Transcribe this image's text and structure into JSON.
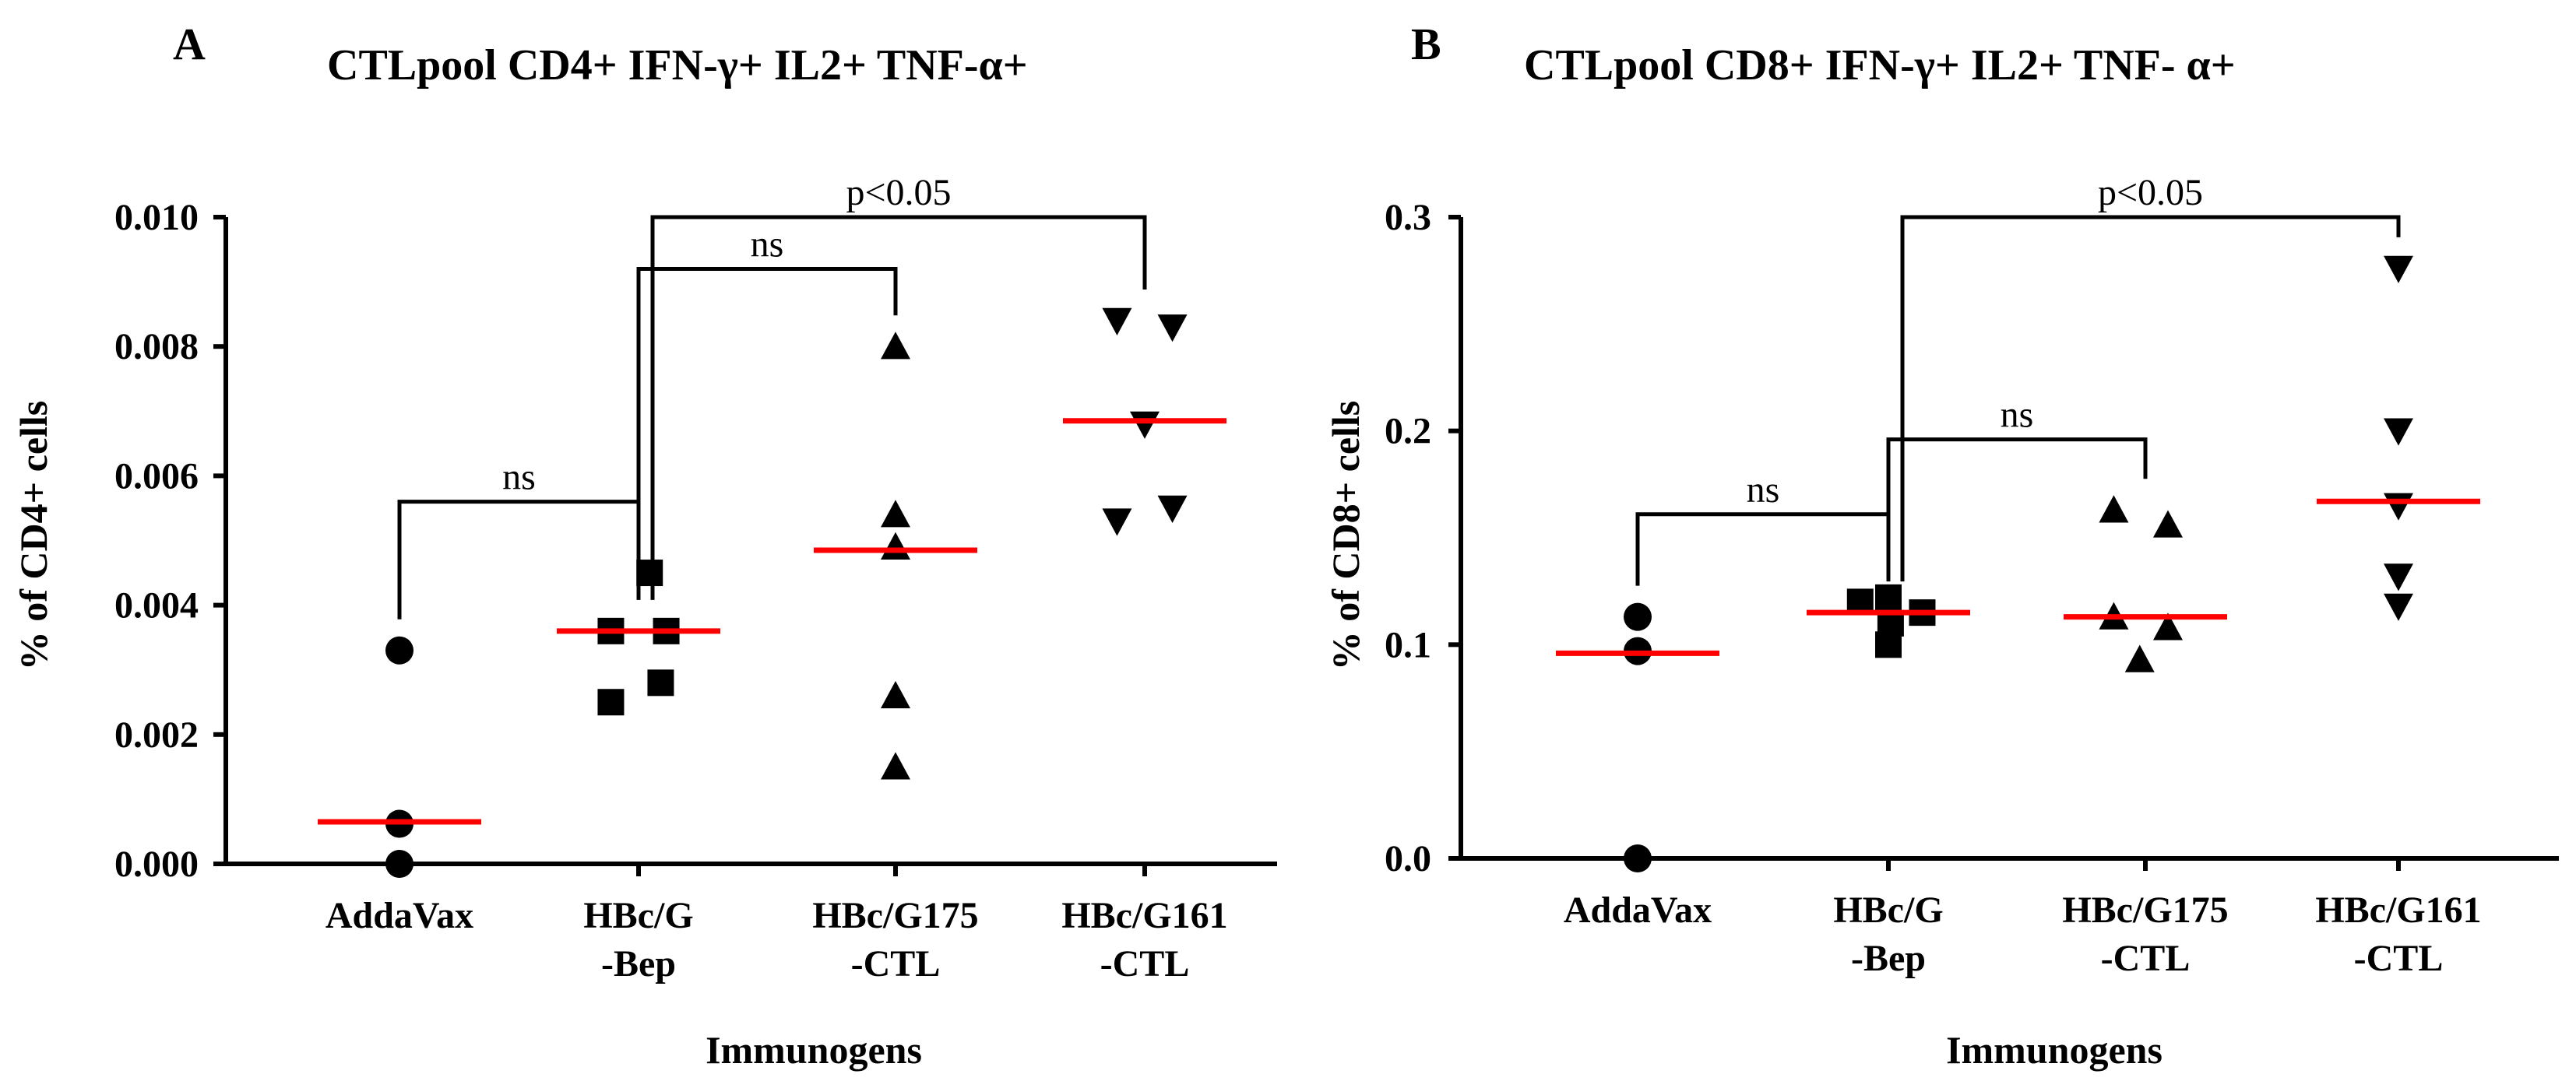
{
  "panel_a": {
    "letter": "A",
    "title": "CTLpool CD4+  IFN-γ+  IL2+ TNF-α+",
    "ylabel": "% of  CD4+ cells",
    "xlabel": "Immunogens"
  },
  "panel_b": {
    "letter": "B",
    "title": "CTLpool  CD8+  IFN-γ+  IL2+ TNF- α+",
    "ylabel": "% of  CD8+ cells",
    "xlabel": "Immunogens"
  },
  "colors": {
    "median": "#ff0000",
    "points": "#000000"
  },
  "chart_data": [
    {
      "type": "scatter",
      "panel": "A",
      "title": "CTLpool CD4+  IFN-γ+  IL2+ TNF-α+",
      "xlabel": "Immunogens",
      "ylabel": "% of  CD4+ cells",
      "ylim": [
        0,
        0.01
      ],
      "yticks": [
        0.0,
        0.002,
        0.004,
        0.006,
        0.008,
        0.01
      ],
      "ytick_labels": [
        "0.000",
        "0.002",
        "0.004",
        "0.006",
        "0.008",
        "0.010"
      ],
      "categories": [
        "AddaVax",
        "HBc/G -Bep",
        "HBc/G175 -CTL",
        "HBc/G161 -CTL"
      ],
      "category_lines": [
        [
          "AddaVax"
        ],
        [
          "HBc/G",
          "-Bep"
        ],
        [
          "HBc/G175",
          "-CTL"
        ],
        [
          "HBc/G161",
          "-CTL"
        ]
      ],
      "groups": [
        {
          "name": "AddaVax",
          "marker": "circle",
          "median": 0.00065,
          "points": [
            {
              "y": 0.0033,
              "jitter": 0
            },
            {
              "y": 0.00062,
              "jitter": 0
            },
            {
              "y": 0.0,
              "jitter": 0
            }
          ]
        },
        {
          "name": "HBc/G -Bep",
          "marker": "square",
          "median": 0.0036,
          "points": [
            {
              "y": 0.0045,
              "jitter": 0.1
            },
            {
              "y": 0.0036,
              "jitter": -0.25
            },
            {
              "y": 0.0036,
              "jitter": 0.25
            },
            {
              "y": 0.0028,
              "jitter": 0.2
            },
            {
              "y": 0.0025,
              "jitter": -0.25
            }
          ]
        },
        {
          "name": "HBc/G175 -CTL",
          "marker": "triangle-up",
          "median": 0.00485,
          "points": [
            {
              "y": 0.008,
              "jitter": 0
            },
            {
              "y": 0.0054,
              "jitter": 0
            },
            {
              "y": 0.0049,
              "jitter": 0
            },
            {
              "y": 0.0026,
              "jitter": 0
            },
            {
              "y": 0.0015,
              "jitter": 0
            }
          ]
        },
        {
          "name": "HBc/G161 -CTL",
          "marker": "triangle-down",
          "median": 0.00685,
          "points": [
            {
              "y": 0.0084,
              "jitter": -0.25
            },
            {
              "y": 0.0083,
              "jitter": 0.25
            },
            {
              "y": 0.0068,
              "jitter": 0
            },
            {
              "y": 0.0053,
              "jitter": -0.25
            },
            {
              "y": 0.0055,
              "jitter": 0.25
            }
          ]
        }
      ],
      "comparisons": [
        {
          "from": 0,
          "to": 1,
          "label": "ns",
          "y": 0.0056
        },
        {
          "from": 1,
          "to": 2,
          "label": "ns",
          "y": 0.0092
        },
        {
          "from": 1,
          "to": 3,
          "label": "p<0.05",
          "y": 0.01
        }
      ]
    },
    {
      "type": "scatter",
      "panel": "B",
      "title": "CTLpool  CD8+  IFN-γ+  IL2+ TNF- α+",
      "xlabel": "Immunogens",
      "ylabel": "% of  CD8+ cells",
      "ylim": [
        0,
        0.3
      ],
      "yticks": [
        0.0,
        0.1,
        0.2,
        0.3
      ],
      "ytick_labels": [
        "0.0",
        "0.1",
        "0.2",
        "0.3"
      ],
      "categories": [
        "AddaVax",
        "HBc/G -Bep",
        "HBc/G175 -CTL",
        "HBc/G161 -CTL"
      ],
      "category_lines": [
        [
          "AddaVax"
        ],
        [
          "HBc/G",
          "-Bep"
        ],
        [
          "HBc/G175",
          "-CTL"
        ],
        [
          "HBc/G161",
          "-CTL"
        ]
      ],
      "groups": [
        {
          "name": "AddaVax",
          "marker": "circle",
          "median": 0.096,
          "points": [
            {
              "y": 0.113,
              "jitter": 0
            },
            {
              "y": 0.097,
              "jitter": 0
            },
            {
              "y": 0.0,
              "jitter": 0
            }
          ]
        },
        {
          "name": "HBc/G -Bep",
          "marker": "square",
          "median": 0.115,
          "points": [
            {
              "y": 0.12,
              "jitter": -0.25
            },
            {
              "y": 0.122,
              "jitter": 0
            },
            {
              "y": 0.115,
              "jitter": 0.3
            },
            {
              "y": 0.11,
              "jitter": 0.02
            },
            {
              "y": 0.1,
              "jitter": 0
            }
          ]
        },
        {
          "name": "HBc/G175 -CTL",
          "marker": "triangle-up",
          "median": 0.113,
          "points": [
            {
              "y": 0.163,
              "jitter": -0.28
            },
            {
              "y": 0.156,
              "jitter": 0.2
            },
            {
              "y": 0.113,
              "jitter": -0.28
            },
            {
              "y": 0.108,
              "jitter": 0.2
            },
            {
              "y": 0.093,
              "jitter": -0.05
            }
          ]
        },
        {
          "name": "HBc/G161 -CTL",
          "marker": "triangle-down",
          "median": 0.167,
          "points": [
            {
              "y": 0.276,
              "jitter": 0
            },
            {
              "y": 0.2,
              "jitter": 0
            },
            {
              "y": 0.165,
              "jitter": 0
            },
            {
              "y": 0.132,
              "jitter": 0
            },
            {
              "y": 0.118,
              "jitter": 0
            }
          ]
        }
      ],
      "comparisons": [
        {
          "from": 0,
          "to": 1,
          "label": "ns",
          "y": 0.161
        },
        {
          "from": 1,
          "to": 2,
          "label": "ns",
          "y": 0.196
        },
        {
          "from": 1,
          "to": 3,
          "label": "p<0.05",
          "y": 0.3
        }
      ]
    }
  ]
}
